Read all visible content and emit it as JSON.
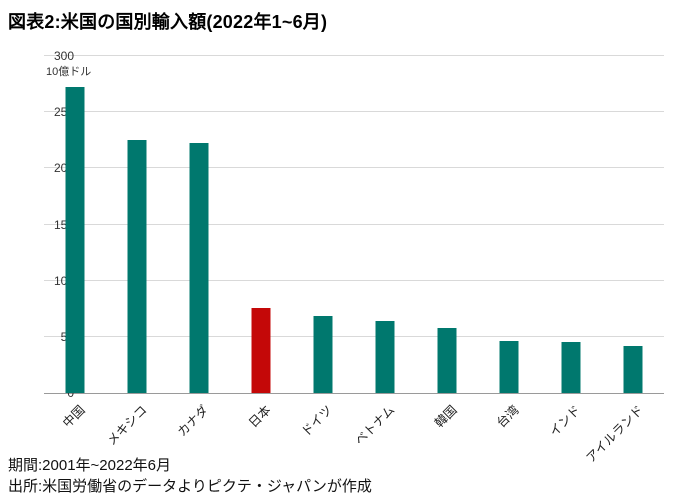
{
  "title": "図表2:米国の国別輸入額(2022年1~6月)",
  "chart_data": {
    "type": "bar",
    "title": "図表2:米国の国別輸入額(2022年1~6月)",
    "unit_label": "10億ドル",
    "categories": [
      "中国",
      "メキシコ",
      "カナダ",
      "日本",
      "ドイツ",
      "ベトナム",
      "韓国",
      "台湾",
      "インド",
      "アイルランド"
    ],
    "values": [
      272,
      225,
      223,
      76,
      69,
      64,
      58,
      46,
      45,
      42
    ],
    "ylim": [
      0,
      300
    ],
    "yticks": [
      0,
      50,
      100,
      150,
      200,
      250,
      300
    ],
    "grid": true,
    "legend": "none",
    "bar_color": "#00786e",
    "highlight_index": 3,
    "highlight_color": "#c40808"
  },
  "footer": {
    "period": "期間:2001年~2022年6月",
    "source": "出所:米国労働省のデータよりピクテ・ジャパンが作成"
  }
}
